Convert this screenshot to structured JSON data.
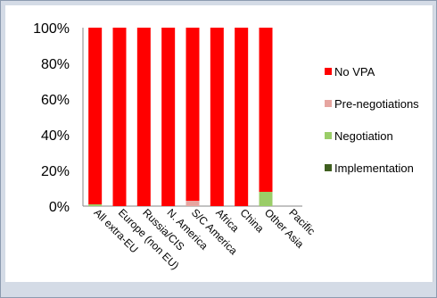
{
  "chart_data": {
    "type": "bar",
    "stacked": true,
    "percent": true,
    "title": "",
    "xlabel": "",
    "ylabel": "",
    "ylim": [
      0,
      100
    ],
    "yticks": [
      "0%",
      "20%",
      "40%",
      "60%",
      "80%",
      "100%"
    ],
    "grid": false,
    "legend_position": "right",
    "categories": [
      "All extra-EU",
      "Europe (non EU)",
      "Russia/CIS",
      "N. America",
      "S/C America",
      "Africa",
      "China",
      "Other Asia",
      "Pacific"
    ],
    "series": [
      {
        "name": "No VPA",
        "color": "#ff0000",
        "values": [
          99,
          100,
          100,
          100,
          97,
          100,
          100,
          92,
          0
        ]
      },
      {
        "name": "Pre-negotiations",
        "color": "#e6a5a0",
        "values": [
          0,
          0,
          0,
          0,
          3,
          0,
          0,
          0,
          0
        ]
      },
      {
        "name": "Negotiation",
        "color": "#9acd68",
        "values": [
          1,
          0,
          0,
          0,
          0,
          0,
          0,
          8,
          0
        ]
      },
      {
        "name": "Implementation",
        "color": "#3f5f1f",
        "values": [
          0,
          0,
          0,
          0,
          0,
          0,
          0,
          0,
          0
        ]
      }
    ],
    "legend_order": [
      "No VPA",
      "Pre-negotiations",
      "Negotiation",
      "Implementation"
    ]
  }
}
